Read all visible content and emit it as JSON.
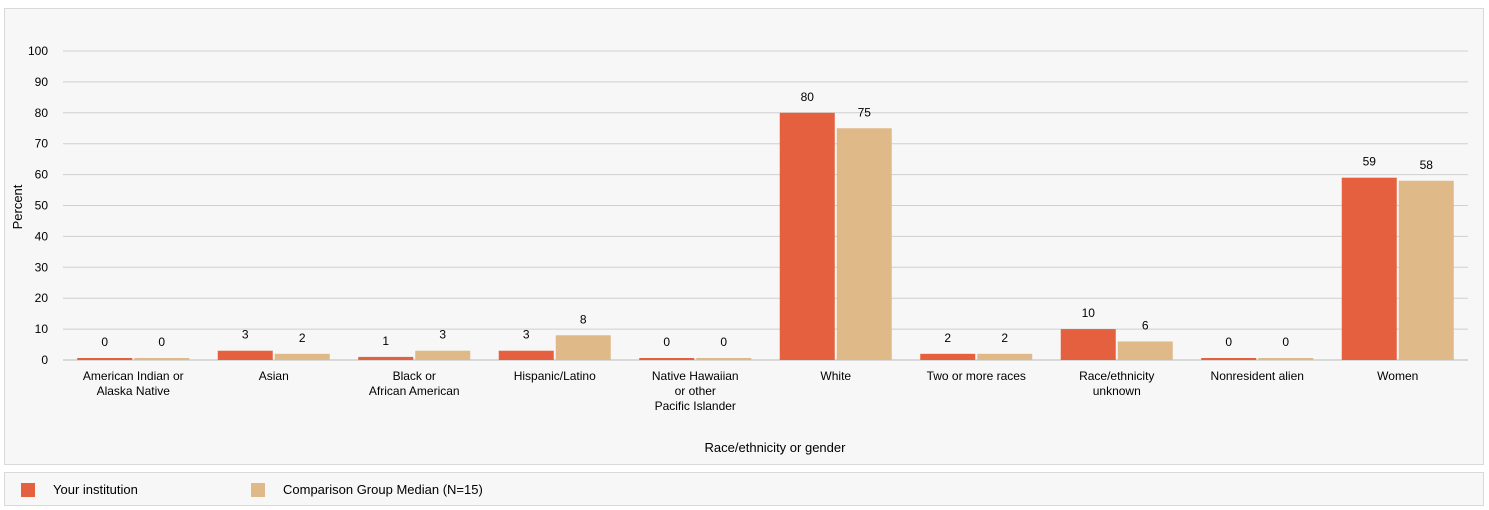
{
  "chart_data": {
    "type": "bar",
    "categories": [
      [
        "American Indian or",
        "Alaska Native"
      ],
      [
        "Asian"
      ],
      [
        "Black or",
        "African American"
      ],
      [
        "Hispanic/Latino"
      ],
      [
        "Native Hawaiian",
        "or other",
        "Pacific Islander"
      ],
      [
        "White"
      ],
      [
        "Two or more races"
      ],
      [
        "Race/ethnicity",
        "unknown"
      ],
      [
        "Nonresident alien"
      ],
      [
        "Women"
      ]
    ],
    "series": [
      {
        "name": "Your institution",
        "color": "#e4603f",
        "values": [
          0,
          3,
          1,
          3,
          0,
          80,
          2,
          10,
          0,
          59
        ]
      },
      {
        "name": "Comparison Group Median (N=15)",
        "color": "#e0b988",
        "values": [
          0,
          2,
          3,
          8,
          0,
          75,
          2,
          6,
          0,
          58
        ]
      }
    ],
    "xlabel": "Race/ethnicity or gender",
    "ylabel": "Percent",
    "ylim": [
      0,
      100
    ],
    "yticks": [
      0,
      10,
      20,
      30,
      40,
      50,
      60,
      70,
      80,
      90,
      100
    ],
    "grid": true,
    "legend_position": "bottom-left"
  }
}
